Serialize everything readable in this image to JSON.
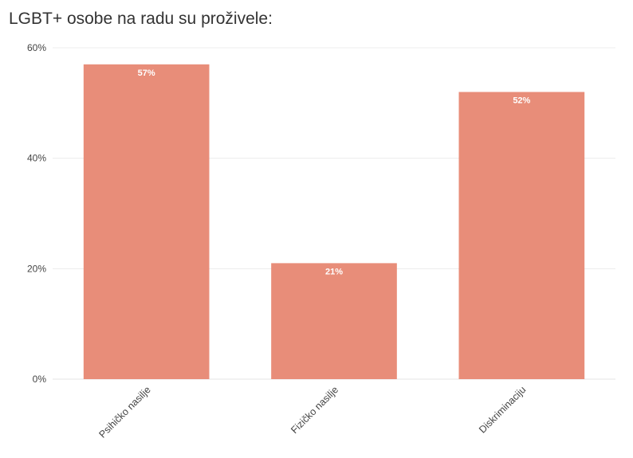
{
  "chart_data": {
    "type": "bar",
    "title": "LGBT+ osobe na radu su proživele:",
    "categories": [
      "Psihičko nasilje",
      "Fizičko nasilje",
      "Diskriminaciju"
    ],
    "values": [
      57,
      21,
      52
    ],
    "value_labels": [
      "57%",
      "21%",
      "52%"
    ],
    "ylim": [
      0,
      60
    ],
    "yticks": [
      0,
      20,
      40,
      60
    ],
    "ytick_labels": [
      "0%",
      "20%",
      "40%",
      "60%"
    ],
    "xlabel": "",
    "ylabel": "",
    "grid": true,
    "colors": {
      "bar": "#e88d79",
      "grid": "#ececec",
      "axis": "#e6e6e6"
    }
  }
}
